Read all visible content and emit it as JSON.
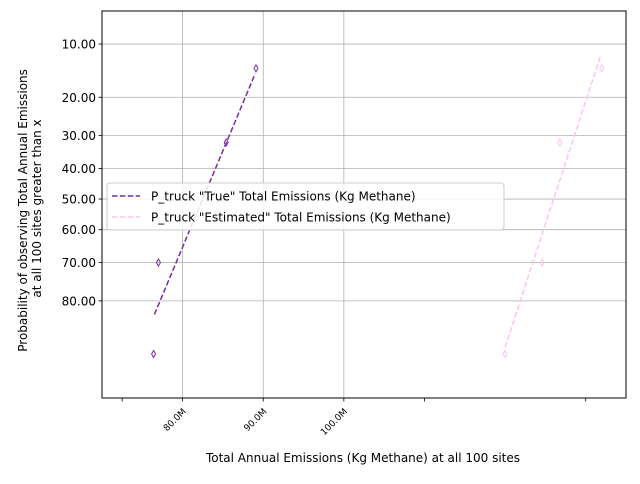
{
  "chart_data": {
    "type": "scatter",
    "xlabel": "Total Annual Emissions (Kg Methane) at all 100 sites",
    "ylabel_lines": [
      "Probability of observing Total Annual Emissions",
      "at all 100 sites greater than x"
    ],
    "xlim": [
      70000000,
      135000000
    ],
    "x_ticks": [
      {
        "value": 80000000,
        "label": "80.0M"
      },
      {
        "value": 90000000,
        "label": "90.0M"
      },
      {
        "value": 100000000,
        "label": "100.0M"
      }
    ],
    "x_minor_ticks": [
      72500000,
      110000000,
      130000000
    ],
    "y_scale": "probit (exceedance probability, %)",
    "y_ticks": [
      {
        "value": 10,
        "label": "10.00"
      },
      {
        "value": 20,
        "label": "20.00"
      },
      {
        "value": 30,
        "label": "30.00"
      },
      {
        "value": 40,
        "label": "40.00"
      },
      {
        "value": 50,
        "label": "50.00"
      },
      {
        "value": 60,
        "label": "60.00"
      },
      {
        "value": 70,
        "label": "70.00"
      },
      {
        "value": 80,
        "label": "80.00"
      }
    ],
    "grid": true,
    "legend_position": "center-left",
    "series": [
      {
        "name": "P_truck \"True\" Total Emissions (Kg Methane)",
        "color": "#7b2a9e",
        "line_style": "dashed",
        "marker": "thin-diamond",
        "points": [
          {
            "x": 76400000,
            "y": 90
          },
          {
            "x": 77000000,
            "y": 70
          },
          {
            "x": 85400000,
            "y": 32
          },
          {
            "x": 89100000,
            "y": 14
          }
        ],
        "fit_line": [
          {
            "x": 76500000,
            "y": 83
          },
          {
            "x": 89000000,
            "y": 15
          }
        ]
      },
      {
        "name": "P_truck \"Estimated\" Total Emissions (Kg Methane)",
        "color": "#f7c6f2",
        "line_style": "dashed",
        "marker": "thin-diamond",
        "points": [
          {
            "x": 120000000,
            "y": 90
          },
          {
            "x": 124600000,
            "y": 70
          },
          {
            "x": 126800000,
            "y": 32
          },
          {
            "x": 132000000,
            "y": 14
          }
        ],
        "fit_line": [
          {
            "x": 120000000,
            "y": 89
          },
          {
            "x": 131800000,
            "y": 12
          }
        ]
      }
    ]
  }
}
